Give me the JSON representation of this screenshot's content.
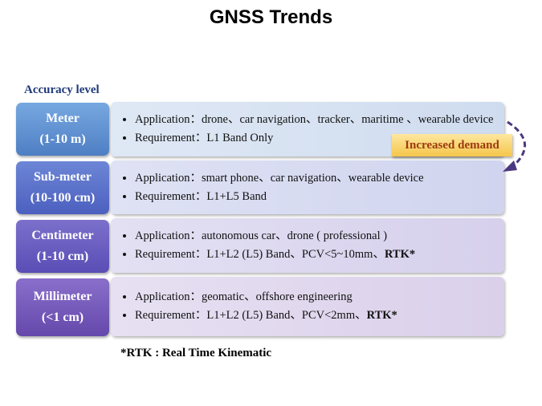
{
  "header": {
    "title": "GNSS Trends"
  },
  "axis_label": "Accuracy level",
  "levels": [
    {
      "name": "Meter",
      "range": "(1-10 m)",
      "application": "Application：drone、car navigation、tracker、maritime 、wearable device",
      "requirement": "Requirement：L1 Band Only"
    },
    {
      "name": "Sub-meter",
      "range": "(10-100 cm)",
      "application": "Application：smart phone、car navigation、wearable device",
      "requirement": "Requirement：L1+L5 Band"
    },
    {
      "name": "Centimeter",
      "range": "(1-10 cm)",
      "application": "Application：autonomous car、drone ( professional )",
      "requirement": "Requirement：L1+L2 (L5) Band、PCV<5~10mm、",
      "requirement_bold": "RTK*"
    },
    {
      "name": "Millimeter",
      "range": "(<1 cm)",
      "application": "Application：geomatic、offshore engineering",
      "requirement": "Requirement：L1+L2 (L5) Band、PCV<2mm、",
      "requirement_bold": "RTK*"
    }
  ],
  "trend_label": "Increased demand",
  "footnote": "*RTK : Real Time Kinematic"
}
